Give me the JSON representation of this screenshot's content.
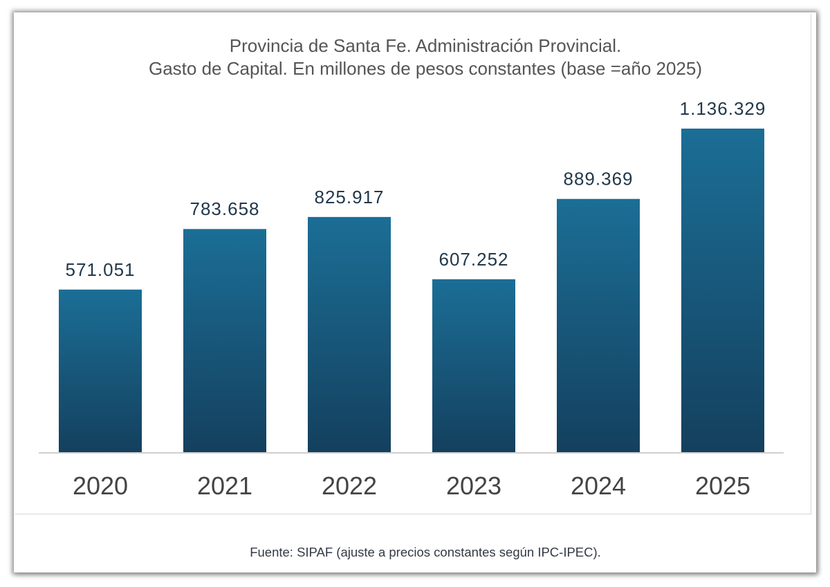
{
  "chart_data": {
    "type": "bar",
    "title": "Provincia de Santa Fe. Administración Provincial.",
    "subtitle": "Gasto de Capital. En millones de pesos constantes (base =año 2025)",
    "categories": [
      "2020",
      "2021",
      "2022",
      "2023",
      "2024",
      "2025"
    ],
    "values": [
      571051,
      783658,
      825917,
      607252,
      889369,
      1136329
    ],
    "data_labels": [
      "571.051",
      "783.658",
      "825.917",
      "607.252",
      "889.369",
      "1.136.329"
    ],
    "xlabel": "",
    "ylabel": "",
    "ylim": [
      0,
      1136329
    ],
    "grid": false,
    "legend": "none",
    "bar_color_top": "#1b6e96",
    "bar_color_bottom": "#14405e"
  },
  "source_note": "Fuente: SIPAF (ajuste a precios constantes según IPC-IPEC)."
}
